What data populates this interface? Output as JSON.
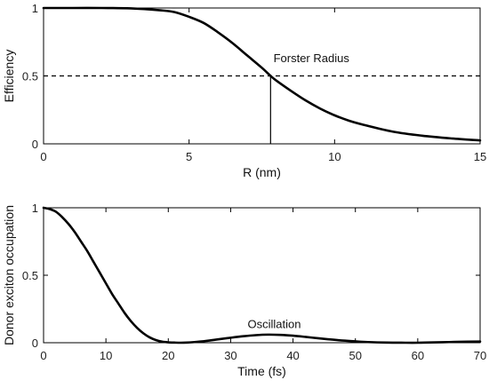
{
  "chart_data": [
    {
      "type": "line",
      "title": "",
      "xlabel": "R (nm)",
      "ylabel": "Efficiency",
      "xlim": [
        0,
        15
      ],
      "ylim": [
        0,
        1
      ],
      "xticks": [
        0,
        5,
        10,
        15
      ],
      "yticks": [
        0,
        0.5,
        1
      ],
      "xtick_labels": [
        "0",
        "5",
        "10",
        "15"
      ],
      "ytick_labels": [
        "0",
        "0.5",
        "1"
      ],
      "grid": false,
      "series": [
        {
          "x": [
            0,
            1,
            2,
            3,
            4,
            4.5,
            5,
            5.5,
            6,
            6.5,
            7,
            7.5,
            7.8,
            8,
            8.5,
            9,
            9.5,
            10,
            10.5,
            11,
            12,
            13,
            14,
            15
          ],
          "values": [
            1.0,
            1.0,
            1.0,
            0.997,
            0.983,
            0.97,
            0.935,
            0.89,
            0.82,
            0.74,
            0.65,
            0.56,
            0.5,
            0.465,
            0.39,
            0.32,
            0.26,
            0.21,
            0.17,
            0.14,
            0.09,
            0.06,
            0.04,
            0.025
          ]
        }
      ],
      "reference_lines": [
        {
          "orientation": "horizontal",
          "y": 0.5,
          "style": "dashed"
        },
        {
          "orientation": "vertical",
          "x": 7.8,
          "y_from": 0,
          "y_to": 0.5,
          "style": "solid"
        }
      ],
      "annotations": [
        {
          "text": "Forster Radius",
          "x": 7.9,
          "y": 0.6
        }
      ]
    },
    {
      "type": "line",
      "title": "",
      "xlabel": "Time (fs)",
      "ylabel": "Donor exciton occupation",
      "xlim": [
        0,
        70
      ],
      "ylim": [
        0,
        1
      ],
      "xticks": [
        0,
        10,
        20,
        30,
        40,
        50,
        60,
        70
      ],
      "yticks": [
        0,
        0.5,
        1
      ],
      "xtick_labels": [
        "0",
        "10",
        "20",
        "30",
        "40",
        "50",
        "60",
        "70"
      ],
      "ytick_labels": [
        "0",
        "0.5",
        "1"
      ],
      "grid": false,
      "series": [
        {
          "x": [
            0,
            1,
            2,
            3,
            4,
            5,
            6,
            7,
            8,
            9,
            10,
            11,
            12,
            13,
            14,
            15,
            16,
            17,
            18,
            19,
            20,
            21,
            22,
            23,
            24,
            26,
            28,
            30,
            32,
            34,
            36,
            38,
            40,
            42,
            44,
            46,
            48,
            50,
            52,
            55,
            58,
            60,
            62,
            65,
            68,
            70
          ],
          "values": [
            1.0,
            0.99,
            0.97,
            0.93,
            0.88,
            0.82,
            0.75,
            0.68,
            0.6,
            0.52,
            0.44,
            0.36,
            0.29,
            0.22,
            0.16,
            0.11,
            0.07,
            0.04,
            0.02,
            0.008,
            0.003,
            0.001,
            0.0,
            0.001,
            0.004,
            0.013,
            0.025,
            0.037,
            0.048,
            0.056,
            0.06,
            0.058,
            0.052,
            0.043,
            0.033,
            0.024,
            0.016,
            0.01,
            0.005,
            0.001,
            0.0,
            0.0,
            0.002,
            0.005,
            0.008,
            0.009
          ]
        }
      ],
      "annotations": [
        {
          "text": "Oscillation",
          "x": 37,
          "y": 0.11
        }
      ]
    }
  ]
}
